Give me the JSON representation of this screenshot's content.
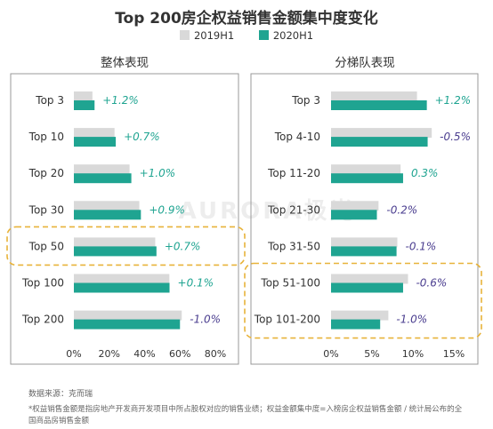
{
  "title": "Top 200房企权益销售金额集中度变化",
  "legend": [
    {
      "label": "2019H1",
      "color": "#d9d9d9"
    },
    {
      "label": "2020H1",
      "color": "#1fa491"
    }
  ],
  "colors": {
    "positive_label": "#1fa491",
    "negative_label": "#4a3d8f",
    "highlight_border": "#e8b33a",
    "panel_border": "#999999"
  },
  "watermark": "AURORA极光",
  "source": "数据来源：克而瑞",
  "note": "*权益销售金额是指房地产开发商开发项目中所占股权对应的销售业绩；权益金额集中度=入榜房企权益销售金额 / 统计局公布的全国商品房销售金额",
  "chart_data": [
    {
      "type": "bar",
      "title": "整体表现",
      "categories": [
        "Top 3",
        "Top 10",
        "Top 20",
        "Top 30",
        "Top 50",
        "Top 100",
        "Top 200"
      ],
      "series": [
        {
          "name": "2019H1",
          "values": [
            10.5,
            23,
            31.5,
            37,
            46,
            54,
            61
          ]
        },
        {
          "name": "2020H1",
          "values": [
            11.7,
            23.7,
            32.5,
            37.9,
            46.7,
            54.1,
            60
          ]
        }
      ],
      "changes": [
        "+1.2%",
        "+0.7%",
        "+1.0%",
        "+0.9%",
        "+0.7%",
        "+0.1%",
        "-1.0%"
      ],
      "xticks": [
        "0%",
        "20%",
        "40%",
        "60%",
        "80%"
      ],
      "xlim": [
        0,
        80
      ],
      "highlight": [
        "Top 50"
      ]
    },
    {
      "type": "bar",
      "title": "分梯队表现",
      "categories": [
        "Top 3",
        "Top 4-10",
        "Top 11-20",
        "Top 21-30",
        "Top 31-50",
        "Top 51-100",
        "Top 101-200"
      ],
      "series": [
        {
          "name": "2019H1",
          "values": [
            10.5,
            12.3,
            8.5,
            5.8,
            8.1,
            9.4,
            7.0
          ]
        },
        {
          "name": "2020H1",
          "values": [
            11.7,
            11.8,
            8.8,
            5.6,
            8.0,
            8.8,
            6.0
          ]
        }
      ],
      "changes": [
        "+1.2%",
        "-0.5%",
        "0.3%",
        "-0.2%",
        "-0.1%",
        "-0.6%",
        "-1.0%"
      ],
      "xticks": [
        "0%",
        "5%",
        "10%",
        "15%"
      ],
      "xlim": [
        0,
        15
      ],
      "highlight": [
        "Top 51-100",
        "Top 101-200"
      ]
    }
  ]
}
